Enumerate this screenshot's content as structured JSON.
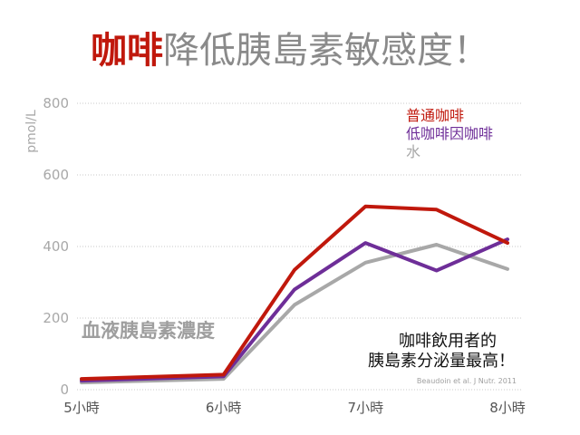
{
  "title": {
    "highlight": "咖啡",
    "rest": "降低胰島素敏感度！"
  },
  "chart_data": {
    "type": "line",
    "title": "咖啡降低胰島素敏感度！",
    "ylabel": "pmol/L",
    "xlabel": "",
    "x_ticks": [
      "5小時",
      "6小時",
      "7小時",
      "8小時"
    ],
    "y_ticks": [
      "0",
      "200",
      "400",
      "600",
      "800"
    ],
    "ylim": [
      0,
      800
    ],
    "xlim": [
      5,
      8
    ],
    "grid": "horizontal dotted",
    "legend_position": "top-right",
    "series": [
      {
        "name": "普通咖啡",
        "color": "#c0180c",
        "x": [
          5,
          6,
          6.5,
          7,
          7.5,
          8
        ],
        "y": [
          30,
          42,
          335,
          512,
          503,
          410
        ]
      },
      {
        "name": "低咖啡因咖啡",
        "color": "#6e2e98",
        "x": [
          5,
          6,
          6.5,
          7,
          7.5,
          8
        ],
        "y": [
          25,
          37,
          280,
          410,
          333,
          420
        ]
      },
      {
        "name": "水",
        "color": "#a8a8a8",
        "x": [
          5,
          6,
          6.5,
          7,
          7.5,
          8
        ],
        "y": [
          20,
          30,
          237,
          355,
          405,
          337
        ]
      }
    ],
    "annotations": [
      "血液胰島素濃度",
      "咖啡飲用者的",
      "胰島素分泌量最高！",
      "Beaudoin et al. J Nutr. 2011"
    ]
  }
}
